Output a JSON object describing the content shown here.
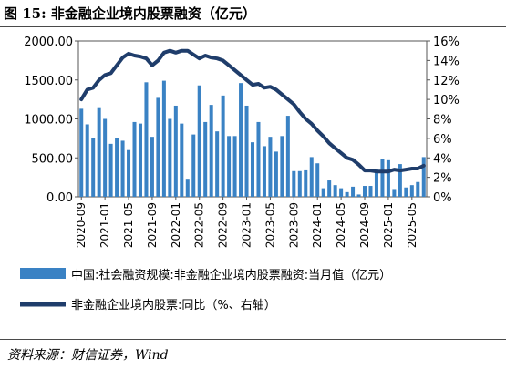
{
  "page": {
    "title": "图 15:  非金融企业境内股票融资（亿元）",
    "source": "资料来源：财信证券，Wind"
  },
  "chart_data": {
    "type": "bar",
    "x": [
      "2020-09",
      "2020-10",
      "2020-11",
      "2020-12",
      "2021-01",
      "2021-02",
      "2021-03",
      "2021-04",
      "2021-05",
      "2021-06",
      "2021-07",
      "2021-08",
      "2021-09",
      "2021-10",
      "2021-11",
      "2021-12",
      "2022-01",
      "2022-02",
      "2022-03",
      "2022-04",
      "2022-05",
      "2022-06",
      "2022-07",
      "2022-08",
      "2022-09",
      "2022-10",
      "2022-11",
      "2022-12",
      "2023-01",
      "2023-02",
      "2023-03",
      "2023-04",
      "2023-05",
      "2023-06",
      "2023-07",
      "2023-08",
      "2023-09",
      "2023-10",
      "2023-11",
      "2023-12",
      "2024-01",
      "2024-02",
      "2024-03",
      "2024-04",
      "2024-05",
      "2024-06",
      "2024-07",
      "2024-08",
      "2024-09",
      "2024-10",
      "2024-11",
      "2024-12",
      "2025-01",
      "2025-02",
      "2025-03",
      "2025-04",
      "2025-05",
      "2025-06",
      "2025-07"
    ],
    "tick_labels": [
      "2020-09",
      "2021-01",
      "2021-05",
      "2021-09",
      "2022-01",
      "2022-05",
      "2022-09",
      "2023-01",
      "2023-05",
      "2023-09",
      "2024-01",
      "2024-05",
      "2024-09",
      "2025-01",
      "2025-05"
    ],
    "series": [
      {
        "name": "中国:社会融资规模:非金融企业境内股票融资:当月值（亿元）",
        "type": "bar",
        "axis": "left",
        "color": "#3a82c4",
        "values": [
          1130,
          930,
          760,
          1150,
          1000,
          680,
          760,
          720,
          600,
          960,
          940,
          1470,
          770,
          1270,
          1490,
          1000,
          1170,
          940,
          220,
          800,
          1430,
          960,
          1180,
          840,
          1300,
          780,
          780,
          1460,
          1170,
          700,
          960,
          650,
          770,
          580,
          780,
          1040,
          330,
          330,
          340,
          510,
          430,
          110,
          210,
          150,
          110,
          60,
          130,
          30,
          140,
          140,
          350,
          480,
          470,
          100,
          420,
          120,
          150,
          190,
          510
        ]
      },
      {
        "name": "非金融企业境内股票:同比（%、右轴）",
        "type": "line",
        "axis": "right",
        "color": "#1f3d6b",
        "values": [
          10.0,
          11.0,
          11.2,
          12.0,
          12.5,
          12.7,
          13.5,
          14.3,
          14.7,
          14.5,
          14.4,
          14.2,
          13.5,
          14.0,
          14.8,
          15.0,
          14.8,
          15.0,
          15.0,
          14.6,
          14.2,
          14.5,
          14.3,
          14.2,
          14.0,
          13.5,
          13.0,
          12.5,
          12.0,
          11.5,
          11.6,
          11.2,
          11.3,
          11.0,
          10.5,
          10.0,
          9.5,
          8.7,
          8.0,
          7.5,
          6.8,
          6.2,
          5.5,
          5.0,
          4.5,
          4.0,
          3.8,
          3.3,
          2.7,
          2.7,
          2.6,
          2.6,
          2.6,
          2.8,
          2.7,
          2.8,
          2.9,
          2.9,
          3.2
        ]
      }
    ],
    "y_left": {
      "min": 0,
      "max": 2000,
      "ticks": [
        "0.00",
        "500.00",
        "1000.00",
        "1500.00",
        "2000.00"
      ]
    },
    "y_right": {
      "min": 0,
      "max": 16,
      "ticks": [
        "0%",
        "2%",
        "4%",
        "6%",
        "8%",
        "10%",
        "12%",
        "14%",
        "16%"
      ]
    },
    "legend_position": "bottom",
    "grid": false
  }
}
